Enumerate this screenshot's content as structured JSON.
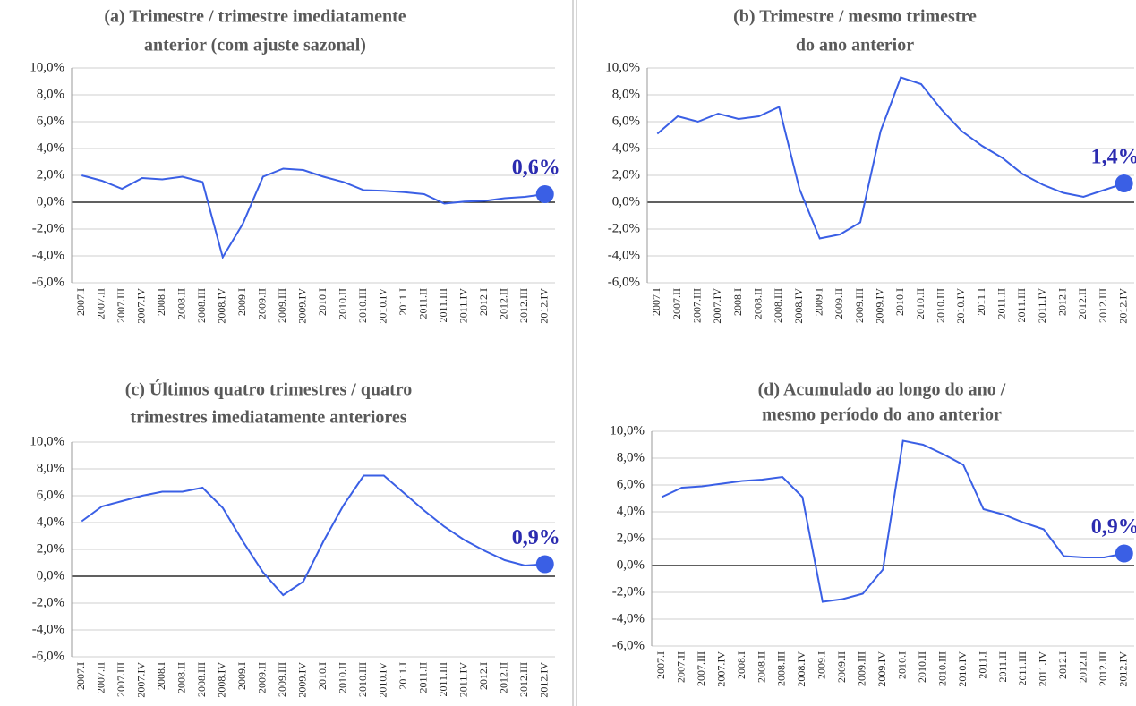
{
  "chart_data": [
    {
      "type": "line",
      "title": [
        "(a) Trimestre / trimestre imediatamente",
        "anterior (com ajuste sazonal)"
      ],
      "categories": [
        "2007.I",
        "2007.II",
        "2007.III",
        "2007.IV",
        "2008.I",
        "2008.II",
        "2008.III",
        "2008.IV",
        "2009.I",
        "2009.II",
        "2009.III",
        "2009.IV",
        "2010.I",
        "2010.II",
        "2010.III",
        "2010.IV",
        "2011.I",
        "2011.II",
        "2011.III",
        "2011.IV",
        "2012.I",
        "2012.II",
        "2012.III",
        "2012.IV"
      ],
      "values": [
        2.0,
        1.6,
        1.0,
        1.8,
        1.7,
        1.9,
        1.5,
        -4.1,
        -1.6,
        1.9,
        2.5,
        2.4,
        1.9,
        1.5,
        0.9,
        0.85,
        0.75,
        0.6,
        -0.1,
        0.05,
        0.1,
        0.3,
        0.4,
        0.6
      ],
      "value_labels": [
        null,
        null,
        null,
        null,
        null,
        null,
        null,
        null,
        null,
        null,
        null,
        null,
        null,
        null,
        null,
        null,
        null,
        null,
        null,
        null,
        null,
        null,
        null,
        "0,6%"
      ],
      "color": "#3a5fe5",
      "ylim": [
        -6,
        10
      ],
      "yticks": [
        {
          "value": -6,
          "label": "-6,0%"
        },
        {
          "value": -4,
          "label": "-4,0%"
        },
        {
          "value": -2,
          "label": "-2,0%"
        },
        {
          "value": 0,
          "label": "0,0%"
        },
        {
          "value": 2,
          "label": "2,0%"
        },
        {
          "value": 4,
          "label": "4,0%"
        },
        {
          "value": 6,
          "label": "6,0%"
        },
        {
          "value": 8,
          "label": "8,0%"
        },
        {
          "value": 10,
          "label": "10,0%"
        }
      ],
      "grid": true
    },
    {
      "type": "line",
      "title": [
        "(b) Trimestre / mesmo trimestre",
        "do ano anterior"
      ],
      "categories": [
        "2007.I",
        "2007.II",
        "2007.III",
        "2007.IV",
        "2008.I",
        "2008.II",
        "2008.III",
        "2008.IV",
        "2009.I",
        "2009.II",
        "2009.III",
        "2009.IV",
        "2010.I",
        "2010.II",
        "2010.III",
        "2010.IV",
        "2011.I",
        "2011.II",
        "2011.III",
        "2011.IV",
        "2012.I",
        "2012.II",
        "2012.III",
        "2012.IV"
      ],
      "values": [
        5.1,
        6.4,
        6.0,
        6.6,
        6.2,
        6.4,
        7.1,
        1.0,
        -2.7,
        -2.4,
        -1.5,
        5.3,
        9.3,
        8.8,
        6.9,
        5.3,
        4.2,
        3.3,
        2.1,
        1.3,
        0.7,
        0.4,
        0.9,
        1.4
      ],
      "value_labels": [
        null,
        null,
        null,
        null,
        null,
        null,
        null,
        null,
        null,
        null,
        null,
        null,
        null,
        null,
        null,
        null,
        null,
        null,
        null,
        null,
        null,
        null,
        null,
        "1,4%"
      ],
      "color": "#3a5fe5",
      "ylim": [
        -6,
        10
      ],
      "yticks": [
        {
          "value": -6,
          "label": "-6,0%"
        },
        {
          "value": -4,
          "label": "-4,0%"
        },
        {
          "value": -2,
          "label": "-2,0%"
        },
        {
          "value": 0,
          "label": "0,0%"
        },
        {
          "value": 2,
          "label": "2,0%"
        },
        {
          "value": 4,
          "label": "4,0%"
        },
        {
          "value": 6,
          "label": "6,0%"
        },
        {
          "value": 8,
          "label": "8,0%"
        },
        {
          "value": 10,
          "label": "10,0%"
        }
      ],
      "grid": true
    },
    {
      "type": "line",
      "title": [
        "(c) Últimos quatro trimestres / quatro",
        "trimestres imediatamente anteriores"
      ],
      "categories": [
        "2007.I",
        "2007.II",
        "2007.III",
        "2007.IV",
        "2008.I",
        "2008.II",
        "2008.III",
        "2008.IV",
        "2009.I",
        "2009.II",
        "2009.III",
        "2009.IV",
        "2010.I",
        "2010.II",
        "2010.III",
        "2010.IV",
        "2011.I",
        "2011.II",
        "2011.III",
        "2011.IV",
        "2012.I",
        "2012.II",
        "2012.III",
        "2012.IV"
      ],
      "values": [
        4.1,
        5.2,
        5.6,
        6.0,
        6.3,
        6.3,
        6.6,
        5.1,
        2.6,
        0.3,
        -1.4,
        -0.4,
        2.6,
        5.3,
        7.5,
        7.5,
        6.2,
        4.9,
        3.7,
        2.7,
        1.9,
        1.2,
        0.8,
        0.9
      ],
      "value_labels": [
        null,
        null,
        null,
        null,
        null,
        null,
        null,
        null,
        null,
        null,
        null,
        null,
        null,
        null,
        null,
        null,
        null,
        null,
        null,
        null,
        null,
        null,
        null,
        "0,9%"
      ],
      "color": "#3a5fe5",
      "ylim": [
        -6,
        10
      ],
      "yticks": [
        {
          "value": -6,
          "label": "-6,0%"
        },
        {
          "value": -4,
          "label": "-4,0%"
        },
        {
          "value": -2,
          "label": "-2,0%"
        },
        {
          "value": 0,
          "label": "0,0%"
        },
        {
          "value": 2,
          "label": "2,0%"
        },
        {
          "value": 4,
          "label": "4,0%"
        },
        {
          "value": 6,
          "label": "6,0%"
        },
        {
          "value": 8,
          "label": "8,0%"
        },
        {
          "value": 10,
          "label": "10,0%"
        }
      ],
      "grid": true
    },
    {
      "type": "line",
      "title": [
        "(d) Acumulado ao longo do ano /",
        "mesmo período do ano anterior"
      ],
      "categories": [
        "2007.I",
        "2007.II",
        "2007.III",
        "2007.IV",
        "2008.I",
        "2008.II",
        "2008.III",
        "2008.IV",
        "2009.I",
        "2009.II",
        "2009.III",
        "2009.IV",
        "2010.I",
        "2010.II",
        "2010.III",
        "2010.IV",
        "2011.I",
        "2011.II",
        "2011.III",
        "2011.IV",
        "2012.I",
        "2012.II",
        "2012.III",
        "2012.IV"
      ],
      "values": [
        5.1,
        5.8,
        5.9,
        6.1,
        6.3,
        6.4,
        6.6,
        5.1,
        -2.7,
        -2.5,
        -2.1,
        -0.3,
        9.3,
        9.0,
        8.3,
        7.5,
        4.2,
        3.8,
        3.2,
        2.7,
        0.7,
        0.6,
        0.6,
        0.9
      ],
      "value_labels": [
        null,
        null,
        null,
        null,
        null,
        null,
        null,
        null,
        null,
        null,
        null,
        null,
        null,
        null,
        null,
        null,
        null,
        null,
        null,
        null,
        null,
        null,
        null,
        "0,9%"
      ],
      "color": "#3a5fe5",
      "ylim": [
        -6,
        10
      ],
      "yticks": [
        {
          "value": -6,
          "label": "-6,0%"
        },
        {
          "value": -4,
          "label": "-4,0%"
        },
        {
          "value": -2,
          "label": "-2,0%"
        },
        {
          "value": 0,
          "label": "0,0%"
        },
        {
          "value": 2,
          "label": "2,0%"
        },
        {
          "value": 4,
          "label": "4,0%"
        },
        {
          "value": 6,
          "label": "6,0%"
        },
        {
          "value": 8,
          "label": "8,0%"
        },
        {
          "value": 10,
          "label": "10,0%"
        }
      ],
      "grid": true
    }
  ]
}
